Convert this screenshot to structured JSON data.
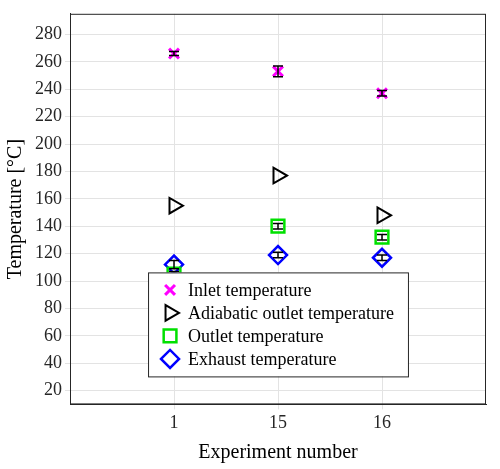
{
  "chart_data": {
    "type": "scatter",
    "x_label": "Experiment number",
    "y_label": "Temperature [°C]",
    "categories": [
      "1",
      "15",
      "16"
    ],
    "series": [
      {
        "name": "Inlet temperature",
        "color": "#ff00ff",
        "marker": "x",
        "values": [
          266,
          253,
          237
        ],
        "errors": [
          1.5,
          4,
          2
        ]
      },
      {
        "name": "Adiabatic outlet temperature",
        "color": "#000000",
        "marker": "triangle-right",
        "values": [
          155,
          177,
          148
        ]
      },
      {
        "name": "Outlet temperature",
        "color": "#00e000",
        "marker": "square",
        "values": [
          105,
          140,
          132
        ],
        "errors": [
          2,
          2,
          2
        ]
      },
      {
        "name": "Exhaust temperature",
        "color": "#0000ff",
        "marker": "diamond",
        "values": [
          112,
          119,
          117
        ],
        "errors": [
          3,
          2,
          2
        ]
      }
    ],
    "ylim": [
      10,
      295
    ],
    "yticks": [
      20,
      40,
      60,
      80,
      100,
      120,
      140,
      160,
      180,
      200,
      220,
      240,
      260,
      280
    ],
    "grid": true,
    "legend": "lower center"
  }
}
